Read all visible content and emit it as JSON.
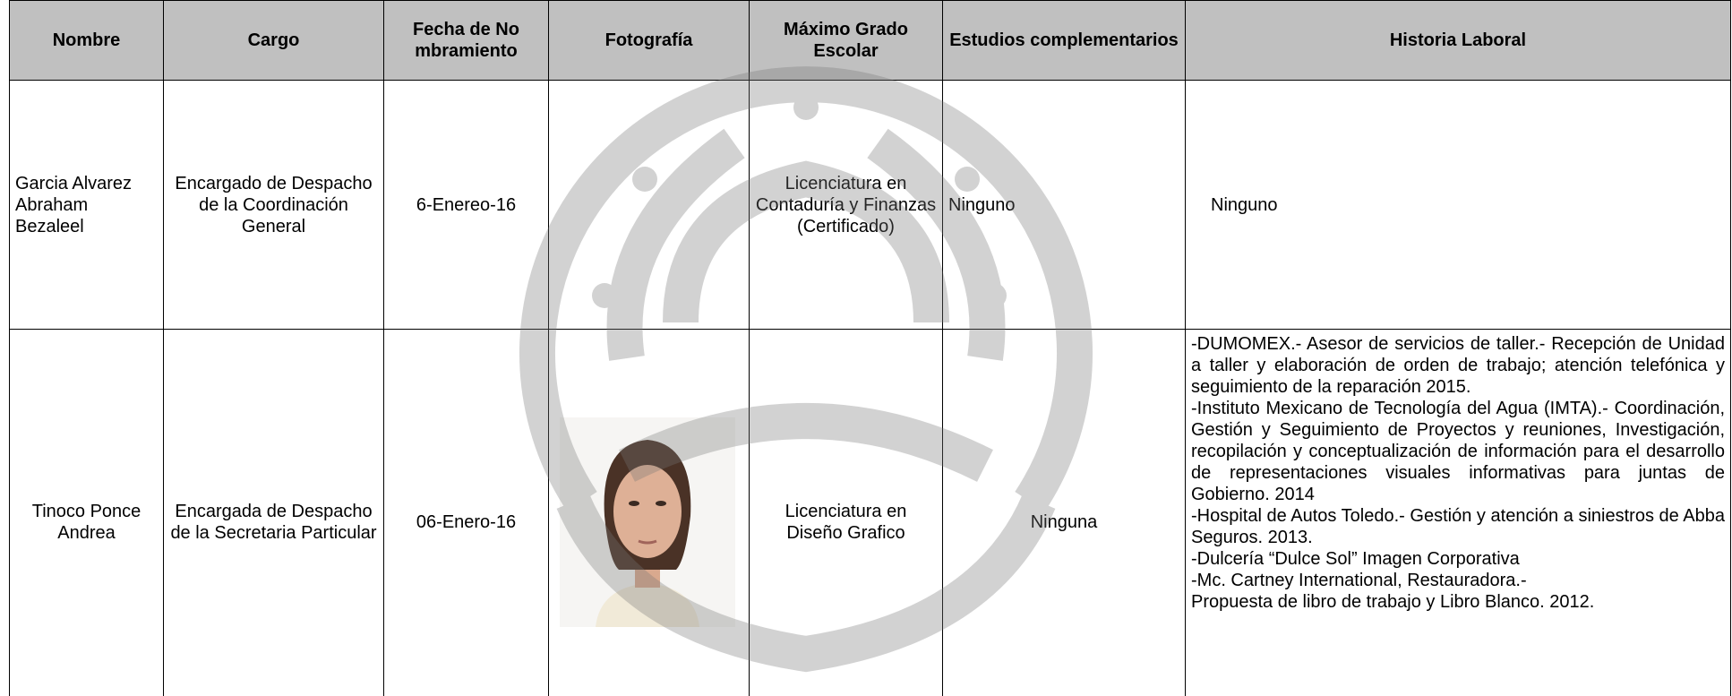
{
  "table": {
    "headers": [
      "Nombre",
      "Cargo",
      "Fecha de Nombramiento",
      "Fotografía",
      "Máximo Grado Escolar",
      "Estudios complementarios",
      "Historia Laboral"
    ],
    "rows": [
      {
        "nombre": "Garcia Alvarez Abraham Bezaleel",
        "cargo": "Encargado de Despacho de la Coordinación General",
        "fecha": "6-Enereo-16",
        "grado": "Licenciatura en Contaduría y Finanzas (Certificado)",
        "estudios": "Ninguno",
        "historia": [
          "Ninguno"
        ]
      },
      {
        "nombre": "Tinoco Ponce Andrea",
        "cargo": "Encargada de Despacho de la Secretaria Particular",
        "fecha": "06-Enero-16",
        "grado": "Licenciatura en Diseño Grafico",
        "estudios": "Ninguna",
        "historia": [
          "-DUMOMEX.- Asesor de servicios de taller.- Recepción de Unidad a taller y elaboración de orden de trabajo; atención telefónica y seguimiento de la reparación 2015.",
          "-Instituto Mexicano de Tecnología del Agua (IMTA).- Coordinación, Gestión y Seguimiento de Proyectos y reuniones, Investigación, recopilación y conceptualización de información para el desarrollo de representaciones visuales informativas para juntas de Gobierno. 2014",
          "-Hospital de Autos Toledo.- Gestión y atención a siniestros de Abba Seguros. 2013.",
          "-Dulcería “Dulce Sol” Imagen Corporativa",
          "-Mc. Cartney International, Restauradora.-",
          "Propuesta de libro de trabajo y Libro Blanco. 2012."
        ]
      }
    ]
  }
}
